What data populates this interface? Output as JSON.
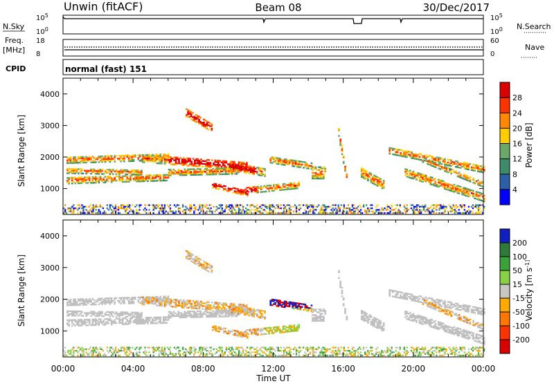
{
  "header": {
    "title": "Unwin (fitACF)",
    "beam": "Beam 08",
    "date": "30/Dec/2017"
  },
  "strips": {
    "nsky_label": "N.Sky",
    "nsky_ticks": [
      "10^5",
      "10^0"
    ],
    "nsearch_label": "N.Search",
    "nsearch_ticks": [
      "10^5",
      "10^0"
    ],
    "freq_label_1": "Freq.",
    "freq_label_2": "[MHz]",
    "freq_ticks": [
      "18",
      "8"
    ],
    "nave_label": "Nave",
    "nave_ticks": [
      "60",
      "0"
    ],
    "cpid_label": "CPID",
    "cpid_text": "normal (fast) 151"
  },
  "chart_data": [
    {
      "type": "heatmap",
      "name": "power",
      "ylabel": "Slant Range [km]",
      "xlabel": "Time UT",
      "x_ticks": [
        "00:00",
        "04:00",
        "08:00",
        "12:00",
        "16:00",
        "20:00",
        "00:00"
      ],
      "x_range_hours": [
        0,
        24
      ],
      "y_ticks": [
        1000,
        2000,
        3000,
        4000
      ],
      "ylim": [
        180,
        4500
      ],
      "colorbar": {
        "label": "Power [dB]",
        "ticks": [
          "4",
          "8",
          "12",
          "16",
          "20",
          "24",
          "28"
        ],
        "range": [
          0,
          30
        ],
        "colors": [
          "#0000ff",
          "#2c5fa8",
          "#3c8c6c",
          "#6aa86a",
          "#ffcc00",
          "#ff8800",
          "#ff3300",
          "#dd0000"
        ]
      }
    },
    {
      "type": "heatmap",
      "name": "velocity",
      "ylabel": "Slant Range [km]",
      "xlabel": "Time UT",
      "x_ticks": [
        "00:00",
        "04:00",
        "08:00",
        "12:00",
        "16:00",
        "20:00",
        "00:00"
      ],
      "x_range_hours": [
        0,
        24
      ],
      "y_ticks": [
        1000,
        2000,
        3000,
        4000
      ],
      "ylim": [
        180,
        4500
      ],
      "colorbar": {
        "label": "Velocity [m s^-1]",
        "ticks": [
          "200",
          "100",
          "50",
          "15",
          "-15",
          "-50",
          "-100",
          "-200"
        ],
        "colors": [
          "#1020c0",
          "#2f7a3a",
          "#39a33a",
          "#88d044",
          "#c8c8c0",
          "#ffaa00",
          "#ff7700",
          "#ff3300",
          "#dd0000"
        ]
      }
    }
  ],
  "colors": {
    "frame": "#000000",
    "ground_scatter": "#c0c0c0"
  }
}
